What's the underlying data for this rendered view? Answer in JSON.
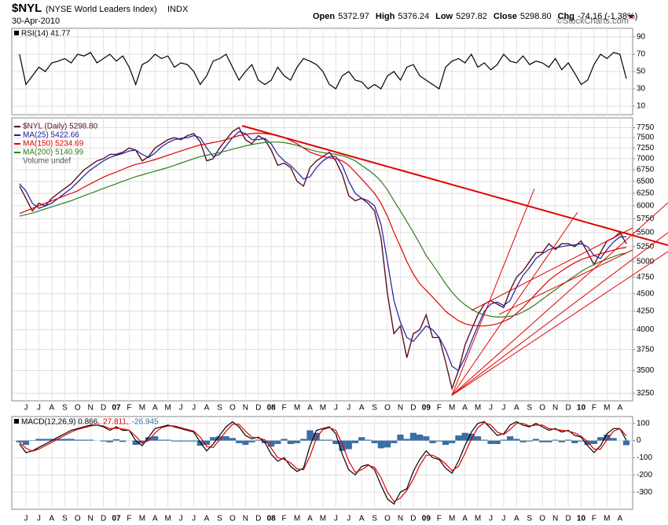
{
  "header": {
    "symbol": "$NYL",
    "description": "(NYSE World Leaders Index)",
    "exchange": "INDX",
    "date": "30-Apr-2010",
    "quote": [
      {
        "label": "Open",
        "value": "5372.97"
      },
      {
        "label": "High",
        "value": "5376.24"
      },
      {
        "label": "Low",
        "value": "5297.82"
      },
      {
        "label": "Close",
        "value": "5298.80"
      },
      {
        "label": "Chg",
        "value": "-74.16 (-1.38%)"
      }
    ],
    "credit": "©StockCharts.com"
  },
  "chart_data": [
    {
      "type": "line",
      "ylim": [
        0,
        100
      ],
      "yticks": [
        10,
        30,
        50,
        70,
        90
      ],
      "grid": true,
      "series": [
        {
          "name": "RSI(14) 41.77",
          "color": "#000000",
          "values": [
            70,
            35,
            45,
            55,
            50,
            60,
            62,
            65,
            60,
            70,
            68,
            72,
            60,
            65,
            70,
            62,
            68,
            55,
            35,
            58,
            62,
            70,
            65,
            68,
            55,
            60,
            58,
            50,
            35,
            45,
            62,
            65,
            70,
            55,
            40,
            50,
            58,
            40,
            35,
            40,
            55,
            45,
            40,
            55,
            65,
            62,
            58,
            50,
            35,
            30,
            45,
            50,
            40,
            38,
            30,
            35,
            30,
            45,
            50,
            40,
            55,
            58,
            45,
            40,
            35,
            30,
            55,
            62,
            65,
            60,
            70,
            55,
            60,
            52,
            58,
            70,
            62,
            60,
            68,
            58,
            62,
            60,
            55,
            65,
            52,
            60,
            48,
            35,
            40,
            58,
            70,
            65,
            72,
            70,
            41.77
          ]
        }
      ]
    },
    {
      "type": "line",
      "log_scale": true,
      "ylim": [
        3170,
        8000
      ],
      "grid": true,
      "yticks": [
        3250,
        3500,
        3750,
        4000,
        4250,
        4500,
        4750,
        5000,
        5250,
        5500,
        5750,
        6000,
        6250,
        6500,
        6750,
        7000,
        7250,
        7500,
        7750
      ],
      "categories": [
        null,
        "J",
        null,
        "J",
        null,
        "A",
        null,
        "S",
        null,
        "O",
        null,
        "N",
        null,
        "D",
        null,
        "07",
        null,
        "F",
        null,
        "M",
        null,
        "A",
        null,
        "M",
        null,
        "J",
        null,
        "J",
        null,
        "A",
        null,
        "S",
        null,
        "O",
        null,
        "N",
        null,
        "D",
        null,
        "08",
        null,
        "F",
        null,
        "M",
        null,
        "A",
        null,
        "M",
        null,
        "J",
        null,
        "J",
        null,
        "A",
        null,
        "S",
        null,
        "O",
        null,
        "N",
        null,
        "D",
        null,
        "09",
        null,
        "F",
        null,
        "M",
        null,
        "A",
        null,
        "M",
        null,
        "J",
        null,
        "J",
        null,
        "A",
        null,
        "S",
        null,
        "O",
        null,
        "N",
        null,
        "D",
        null,
        "10",
        null,
        "F",
        null,
        "M",
        null,
        "A",
        null
      ],
      "series": [
        {
          "name": "$NYL (Daily) 5298.80",
          "color": "#5a1020",
          "values": [
            6400,
            6150,
            5900,
            6050,
            6000,
            6150,
            6250,
            6350,
            6450,
            6600,
            6750,
            6850,
            6950,
            7000,
            7100,
            7100,
            7150,
            7250,
            7200,
            6950,
            7050,
            7250,
            7350,
            7450,
            7500,
            7450,
            7550,
            7600,
            7400,
            6950,
            7000,
            7250,
            7450,
            7650,
            7750,
            7450,
            7350,
            7550,
            7450,
            7200,
            6850,
            6900,
            6800,
            6500,
            6400,
            6800,
            6950,
            7050,
            7150,
            6950,
            6650,
            6200,
            6100,
            6150,
            6050,
            5900,
            5400,
            4500,
            3950,
            4050,
            3650,
            3950,
            4000,
            4200,
            3900,
            3900,
            3600,
            3300,
            3500,
            3800,
            4000,
            4200,
            4350,
            4400,
            4350,
            4300,
            4550,
            4750,
            4850,
            5000,
            5150,
            5150,
            5300,
            5200,
            5300,
            5300,
            5250,
            5350,
            5150,
            4950,
            5150,
            5350,
            5400,
            5500,
            5298.8
          ]
        },
        {
          "name": "MA(25) 5422.66",
          "color": "#1a1aa0",
          "values": [
            6450,
            6300,
            6050,
            5950,
            6000,
            6050,
            6150,
            6250,
            6350,
            6480,
            6620,
            6750,
            6850,
            6950,
            7030,
            7080,
            7120,
            7180,
            7200,
            7100,
            7030,
            7130,
            7280,
            7380,
            7450,
            7480,
            7500,
            7550,
            7500,
            7250,
            7050,
            7100,
            7300,
            7500,
            7650,
            7600,
            7450,
            7450,
            7480,
            7350,
            7100,
            6950,
            6850,
            6700,
            6550,
            6600,
            6800,
            6950,
            7050,
            7050,
            6850,
            6500,
            6250,
            6150,
            6100,
            6000,
            5650,
            5000,
            4400,
            4100,
            3900,
            3850,
            3950,
            4050,
            4000,
            3900,
            3750,
            3550,
            3500,
            3650,
            3850,
            4050,
            4250,
            4350,
            4380,
            4330,
            4400,
            4600,
            4780,
            4900,
            5050,
            5130,
            5200,
            5230,
            5250,
            5270,
            5280,
            5300,
            5250,
            5100,
            5050,
            5200,
            5330,
            5420,
            5422.66
          ]
        },
        {
          "name": "MA(150) 5234.69",
          "color": "#e00000",
          "values": [
            5850,
            5900,
            5950,
            6000,
            6050,
            6100,
            6150,
            6200,
            6250,
            6300,
            6380,
            6450,
            6520,
            6590,
            6650,
            6700,
            6760,
            6820,
            6870,
            6900,
            6940,
            6980,
            7030,
            7080,
            7130,
            7180,
            7230,
            7280,
            7320,
            7350,
            7380,
            7410,
            7450,
            7500,
            7550,
            7580,
            7600,
            7610,
            7600,
            7580,
            7550,
            7500,
            7430,
            7350,
            7250,
            7150,
            7100,
            7050,
            7020,
            7000,
            6950,
            6850,
            6700,
            6550,
            6400,
            6250,
            6050,
            5800,
            5500,
            5250,
            5000,
            4800,
            4650,
            4550,
            4450,
            4350,
            4250,
            4180,
            4120,
            4080,
            4060,
            4050,
            4050,
            4060,
            4080,
            4110,
            4150,
            4220,
            4300,
            4400,
            4500,
            4600,
            4700,
            4780,
            4850,
            4920,
            4980,
            5030,
            5070,
            5100,
            5130,
            5160,
            5190,
            5220,
            5234.69
          ]
        },
        {
          "name": "MA(200) 5140.99",
          "color": "#2e7d1a",
          "values": [
            5800,
            5830,
            5860,
            5900,
            5940,
            5980,
            6020,
            6060,
            6100,
            6150,
            6200,
            6250,
            6300,
            6350,
            6400,
            6450,
            6500,
            6550,
            6600,
            6640,
            6680,
            6720,
            6760,
            6800,
            6850,
            6900,
            6950,
            7000,
            7050,
            7080,
            7110,
            7140,
            7180,
            7220,
            7260,
            7300,
            7330,
            7360,
            7380,
            7390,
            7390,
            7380,
            7350,
            7310,
            7260,
            7210,
            7170,
            7140,
            7120,
            7100,
            7070,
            7020,
            6950,
            6850,
            6750,
            6640,
            6500,
            6320,
            6100,
            5900,
            5700,
            5500,
            5300,
            5100,
            4950,
            4800,
            4650,
            4520,
            4420,
            4340,
            4280,
            4230,
            4200,
            4180,
            4170,
            4170,
            4180,
            4200,
            4240,
            4290,
            4350,
            4420,
            4490,
            4560,
            4630,
            4700,
            4770,
            4840,
            4900,
            4950,
            5000,
            5040,
            5080,
            5120,
            5140.99
          ]
        }
      ],
      "legend_extra": "Volume undef"
    },
    {
      "type": "line",
      "ylim": [
        -400,
        140
      ],
      "yticks": [
        -300,
        -200,
        -100,
        0,
        100
      ],
      "grid": true,
      "series": [
        {
          "name": "-26.945",
          "type": "bar",
          "color": "#3a6ea5",
          "values": [
            -10,
            -25,
            2,
            10,
            10,
            10,
            10,
            10,
            10,
            5,
            5,
            5,
            0,
            -5,
            -10,
            8,
            -8,
            0,
            -25,
            -15,
            20,
            25,
            5,
            5,
            -5,
            -5,
            -5,
            -5,
            -30,
            -25,
            20,
            25,
            25,
            15,
            -15,
            -25,
            -10,
            5,
            -15,
            -35,
            -20,
            10,
            -20,
            -15,
            10,
            60,
            45,
            5,
            5,
            -20,
            -60,
            -50,
            -15,
            20,
            5,
            -15,
            -45,
            -40,
            -15,
            35,
            10,
            45,
            35,
            25,
            -15,
            -5,
            -25,
            -15,
            30,
            45,
            40,
            25,
            5,
            -20,
            -20,
            5,
            25,
            10,
            -10,
            -5,
            10,
            -10,
            -10,
            5,
            -10,
            5,
            -15,
            -5,
            -25,
            -20,
            20,
            35,
            15,
            0,
            -26.945
          ]
        },
        {
          "name": "MACD(12,26,9) 0.866,",
          "color": "#000000",
          "values": [
            -20,
            -70,
            -60,
            -40,
            -20,
            0,
            20,
            40,
            60,
            70,
            80,
            90,
            90,
            80,
            60,
            80,
            60,
            60,
            0,
            -30,
            20,
            70,
            80,
            90,
            80,
            70,
            60,
            50,
            -10,
            -60,
            -20,
            30,
            80,
            110,
            80,
            30,
            10,
            20,
            -10,
            -80,
            -120,
            -100,
            -150,
            -180,
            -160,
            -30,
            60,
            70,
            80,
            40,
            -80,
            -170,
            -200,
            -150,
            -140,
            -170,
            -260,
            -340,
            -370,
            -300,
            -280,
            -180,
            -110,
            -60,
            -100,
            -110,
            -160,
            -190,
            -120,
            -30,
            50,
            100,
            110,
            70,
            30,
            40,
            90,
            110,
            90,
            80,
            100,
            80,
            60,
            70,
            50,
            60,
            30,
            20,
            -30,
            -70,
            -30,
            40,
            70,
            70,
            0.866
          ]
        },
        {
          "name": "27.811,",
          "color": "#e00000",
          "values": [
            -10,
            -45,
            -62,
            -50,
            -30,
            -10,
            10,
            30,
            50,
            65,
            75,
            85,
            90,
            85,
            70,
            72,
            68,
            60,
            25,
            -15,
            0,
            45,
            75,
            85,
            85,
            75,
            65,
            55,
            20,
            -35,
            -40,
            5,
            55,
            95,
            95,
            55,
            20,
            15,
            5,
            -45,
            -100,
            -110,
            -130,
            -165,
            -170,
            -90,
            15,
            65,
            75,
            60,
            -20,
            -120,
            -185,
            -170,
            -145,
            -155,
            -215,
            -300,
            -355,
            -335,
            -290,
            -225,
            -145,
            -85,
            -85,
            -105,
            -135,
            -175,
            -150,
            -75,
            10,
            75,
            105,
            90,
            50,
            35,
            65,
            100,
            100,
            85,
            90,
            90,
            70,
            65,
            60,
            55,
            45,
            25,
            -5,
            -50,
            -50,
            5,
            55,
            70,
            27.811
          ]
        }
      ]
    }
  ]
}
